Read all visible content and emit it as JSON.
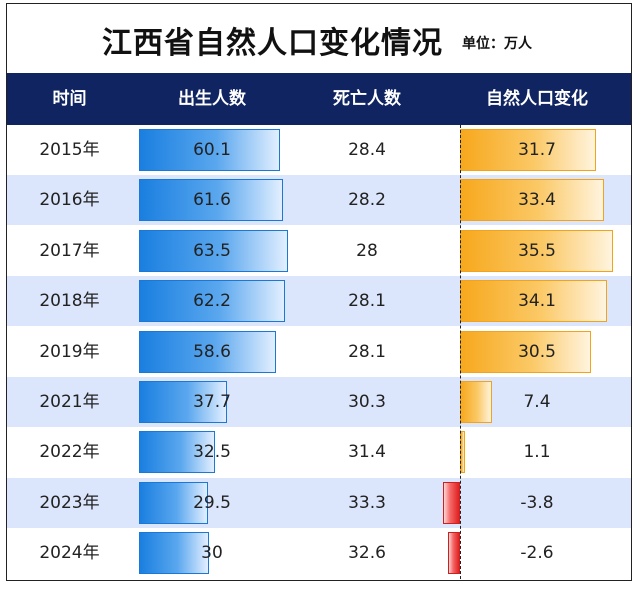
{
  "title": "江西省自然人口变化情况",
  "unit_label": "单位：万人",
  "headers": [
    "时间",
    "出生人数",
    "死亡人数",
    "自然人口变化"
  ],
  "colors": {
    "header_bg": "#0f2460",
    "birth_bar": "#1a7fe0",
    "positive_bar": "#f7a81d",
    "negative_bar": "#e02020",
    "alt_row": "#dbe5fb"
  },
  "rows": [
    {
      "year": "2015年",
      "births": "60.1",
      "deaths": "28.4",
      "change": "31.7"
    },
    {
      "year": "2016年",
      "births": "61.6",
      "deaths": "28.2",
      "change": "33.4"
    },
    {
      "year": "2017年",
      "births": "63.5",
      "deaths": "28",
      "change": "35.5"
    },
    {
      "year": "2018年",
      "births": "62.2",
      "deaths": "28.1",
      "change": "34.1"
    },
    {
      "year": "2019年",
      "births": "58.6",
      "deaths": "28.1",
      "change": "30.5"
    },
    {
      "year": "2021年",
      "births": "37.7",
      "deaths": "30.3",
      "change": "7.4"
    },
    {
      "year": "2022年",
      "births": "32.5",
      "deaths": "31.4",
      "change": "1.1"
    },
    {
      "year": "2023年",
      "births": "29.5",
      "deaths": "33.3",
      "change": "-3.8"
    },
    {
      "year": "2024年",
      "births": "30",
      "deaths": "32.6",
      "change": "-2.6"
    }
  ],
  "chart_data": {
    "type": "table",
    "categories": [
      "2015年",
      "2016年",
      "2017年",
      "2018年",
      "2019年",
      "2021年",
      "2022年",
      "2023年",
      "2024年"
    ],
    "series": [
      {
        "name": "出生人数",
        "values": [
          60.1,
          61.6,
          63.5,
          62.2,
          58.6,
          37.7,
          32.5,
          29.5,
          30
        ]
      },
      {
        "name": "死亡人数",
        "values": [
          28.4,
          28.2,
          28,
          28.1,
          28.1,
          30.3,
          31.4,
          33.3,
          32.6
        ]
      },
      {
        "name": "自然人口变化",
        "values": [
          31.7,
          33.4,
          35.5,
          34.1,
          30.5,
          7.4,
          1.1,
          -3.8,
          -2.6
        ]
      }
    ],
    "title": "江西省自然人口变化情况",
    "unit": "万人"
  }
}
